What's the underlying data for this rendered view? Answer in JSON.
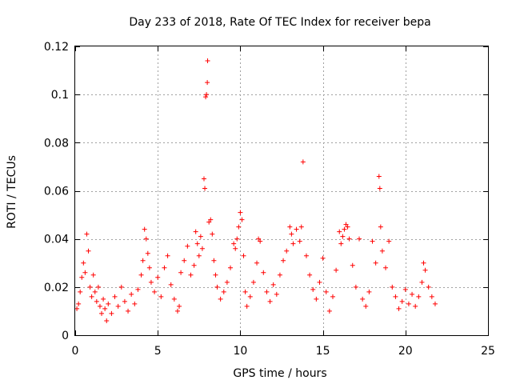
{
  "chart_data": {
    "type": "scatter",
    "title": "Day 233 of 2018, Rate Of TEC Index for receiver bepa",
    "xlabel": "GPS time / hours",
    "ylabel": "ROTI / TECUs",
    "xlim": [
      0,
      25
    ],
    "ylim": [
      0,
      0.12
    ],
    "xticks": [
      0,
      5,
      10,
      15,
      20,
      25
    ],
    "xtick_labels": [
      "0",
      "5",
      "10",
      "15",
      "20",
      "25"
    ],
    "yticks": [
      0,
      0.02,
      0.04,
      0.06,
      0.08,
      0.1,
      0.12
    ],
    "ytick_labels": [
      "0",
      "0.02",
      "0.04",
      "0.06",
      "0.08",
      "0.1",
      "0.12"
    ],
    "grid": true,
    "marker": "+",
    "color": "#ff0000",
    "series": [
      {
        "name": "ROTI",
        "points": [
          [
            0.1,
            0.011
          ],
          [
            0.2,
            0.013
          ],
          [
            0.3,
            0.018
          ],
          [
            0.4,
            0.024
          ],
          [
            0.5,
            0.03
          ],
          [
            0.6,
            0.026
          ],
          [
            0.7,
            0.042
          ],
          [
            0.8,
            0.035
          ],
          [
            0.9,
            0.02
          ],
          [
            1.0,
            0.016
          ],
          [
            1.1,
            0.025
          ],
          [
            1.2,
            0.018
          ],
          [
            1.3,
            0.014
          ],
          [
            1.4,
            0.02
          ],
          [
            1.5,
            0.012
          ],
          [
            1.6,
            0.009
          ],
          [
            1.7,
            0.015
          ],
          [
            1.8,
            0.011
          ],
          [
            1.9,
            0.006
          ],
          [
            2.0,
            0.013
          ],
          [
            2.2,
            0.009
          ],
          [
            2.4,
            0.016
          ],
          [
            2.6,
            0.012
          ],
          [
            2.8,
            0.02
          ],
          [
            3.0,
            0.014
          ],
          [
            3.2,
            0.01
          ],
          [
            3.4,
            0.017
          ],
          [
            3.6,
            0.013
          ],
          [
            3.8,
            0.019
          ],
          [
            4.0,
            0.025
          ],
          [
            4.1,
            0.031
          ],
          [
            4.2,
            0.044
          ],
          [
            4.3,
            0.04
          ],
          [
            4.4,
            0.034
          ],
          [
            4.5,
            0.028
          ],
          [
            4.6,
            0.022
          ],
          [
            4.8,
            0.018
          ],
          [
            5.0,
            0.024
          ],
          [
            5.2,
            0.016
          ],
          [
            5.4,
            0.028
          ],
          [
            5.6,
            0.033
          ],
          [
            5.8,
            0.021
          ],
          [
            6.0,
            0.015
          ],
          [
            6.2,
            0.01
          ],
          [
            6.3,
            0.012
          ],
          [
            6.4,
            0.026
          ],
          [
            6.6,
            0.031
          ],
          [
            6.8,
            0.037
          ],
          [
            7.0,
            0.025
          ],
          [
            7.2,
            0.029
          ],
          [
            7.3,
            0.043
          ],
          [
            7.4,
            0.038
          ],
          [
            7.5,
            0.033
          ],
          [
            7.6,
            0.041
          ],
          [
            7.7,
            0.036
          ],
          [
            7.8,
            0.065
          ],
          [
            7.85,
            0.061
          ],
          [
            7.9,
            0.099
          ],
          [
            7.95,
            0.1
          ],
          [
            8.0,
            0.105
          ],
          [
            8.02,
            0.114
          ],
          [
            8.1,
            0.047
          ],
          [
            8.2,
            0.048
          ],
          [
            8.3,
            0.042
          ],
          [
            8.4,
            0.031
          ],
          [
            8.5,
            0.025
          ],
          [
            8.6,
            0.02
          ],
          [
            8.8,
            0.015
          ],
          [
            9.0,
            0.018
          ],
          [
            9.2,
            0.022
          ],
          [
            9.4,
            0.028
          ],
          [
            9.6,
            0.038
          ],
          [
            9.7,
            0.036
          ],
          [
            9.8,
            0.04
          ],
          [
            9.9,
            0.045
          ],
          [
            10.0,
            0.051
          ],
          [
            10.1,
            0.048
          ],
          [
            10.2,
            0.033
          ],
          [
            10.3,
            0.018
          ],
          [
            10.4,
            0.012
          ],
          [
            10.6,
            0.016
          ],
          [
            10.8,
            0.022
          ],
          [
            11.0,
            0.03
          ],
          [
            11.1,
            0.04
          ],
          [
            11.2,
            0.039
          ],
          [
            11.4,
            0.026
          ],
          [
            11.6,
            0.018
          ],
          [
            11.8,
            0.014
          ],
          [
            12.0,
            0.021
          ],
          [
            12.2,
            0.017
          ],
          [
            12.4,
            0.025
          ],
          [
            12.6,
            0.031
          ],
          [
            12.8,
            0.035
          ],
          [
            13.0,
            0.045
          ],
          [
            13.1,
            0.042
          ],
          [
            13.2,
            0.038
          ],
          [
            13.4,
            0.044
          ],
          [
            13.6,
            0.039
          ],
          [
            13.7,
            0.045
          ],
          [
            13.8,
            0.072
          ],
          [
            14.0,
            0.033
          ],
          [
            14.2,
            0.025
          ],
          [
            14.4,
            0.019
          ],
          [
            14.6,
            0.015
          ],
          [
            14.8,
            0.022
          ],
          [
            15.0,
            0.032
          ],
          [
            15.2,
            0.018
          ],
          [
            15.4,
            0.01
          ],
          [
            15.6,
            0.016
          ],
          [
            15.8,
            0.027
          ],
          [
            16.0,
            0.043
          ],
          [
            16.1,
            0.038
          ],
          [
            16.2,
            0.041
          ],
          [
            16.3,
            0.044
          ],
          [
            16.4,
            0.046
          ],
          [
            16.5,
            0.045
          ],
          [
            16.6,
            0.04
          ],
          [
            16.8,
            0.029
          ],
          [
            17.0,
            0.02
          ],
          [
            17.2,
            0.04
          ],
          [
            17.4,
            0.015
          ],
          [
            17.6,
            0.012
          ],
          [
            17.8,
            0.018
          ],
          [
            18.0,
            0.039
          ],
          [
            18.2,
            0.03
          ],
          [
            18.4,
            0.066
          ],
          [
            18.45,
            0.061
          ],
          [
            18.5,
            0.045
          ],
          [
            18.6,
            0.035
          ],
          [
            18.8,
            0.028
          ],
          [
            19.0,
            0.039
          ],
          [
            19.2,
            0.02
          ],
          [
            19.4,
            0.016
          ],
          [
            19.6,
            0.011
          ],
          [
            19.8,
            0.014
          ],
          [
            20.0,
            0.019
          ],
          [
            20.2,
            0.013
          ],
          [
            20.4,
            0.017
          ],
          [
            20.6,
            0.012
          ],
          [
            20.8,
            0.016
          ],
          [
            21.0,
            0.022
          ],
          [
            21.1,
            0.03
          ],
          [
            21.2,
            0.027
          ],
          [
            21.4,
            0.02
          ],
          [
            21.6,
            0.016
          ],
          [
            21.8,
            0.013
          ]
        ]
      }
    ]
  }
}
